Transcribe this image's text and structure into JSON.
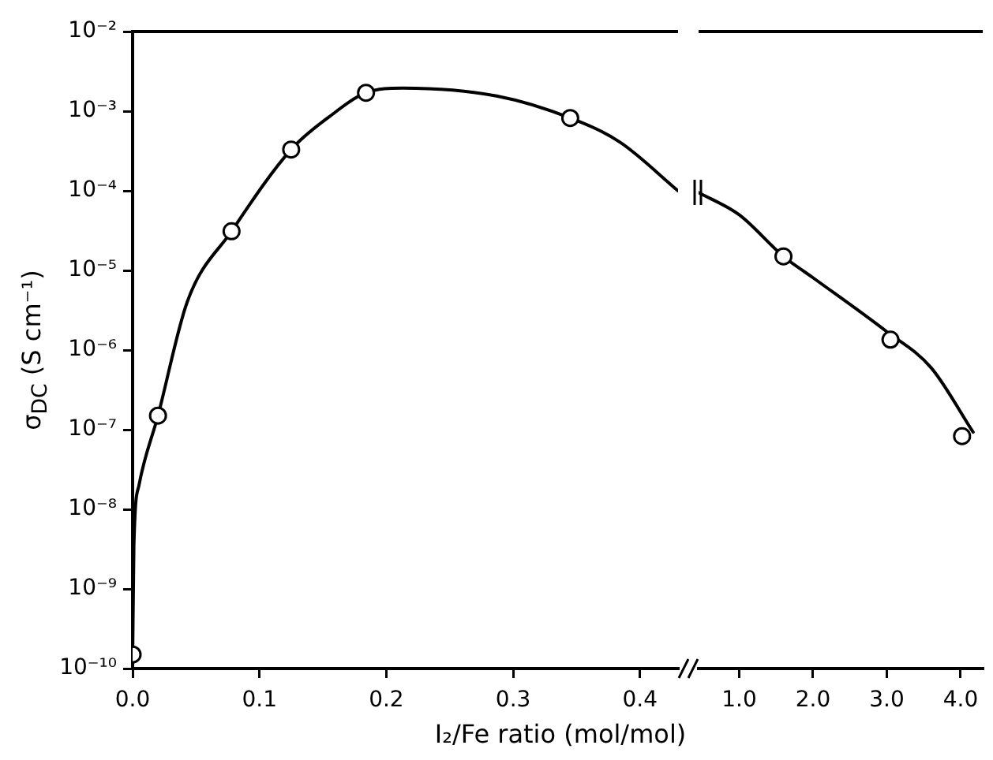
{
  "chart_data": [
    {
      "type": "line",
      "xlabel": "I₂/Fe ratio (mol/mol)",
      "ylabel": "σ$_{DC}$ (S cm⁻¹)",
      "log": "y",
      "grid": false,
      "xlim": [
        0,
        0.43
      ],
      "xticks": [
        {
          "value": 0,
          "label": "0.0"
        },
        {
          "value": 0.1,
          "label": "0.1"
        },
        {
          "value": 0.2,
          "label": "0.2"
        },
        {
          "value": 0.3,
          "label": "0.3"
        },
        {
          "value": 0.4,
          "label": "0.4"
        }
      ],
      "ylim": [
        1e-10,
        0.01
      ],
      "yticks": [
        {
          "value": 1e-10,
          "label": "10⁻¹⁰"
        },
        {
          "value": 1e-09,
          "label": "10⁻⁹"
        },
        {
          "value": 1e-08,
          "label": "10⁻⁸"
        },
        {
          "value": 1e-07,
          "label": "10⁻⁷"
        },
        {
          "value": 1e-06,
          "label": "10⁻⁶"
        },
        {
          "value": 1e-05,
          "label": "10⁻⁵"
        },
        {
          "value": 0.0001,
          "label": "10⁻⁴"
        },
        {
          "value": 0.001,
          "label": "10⁻³"
        },
        {
          "value": 0.01,
          "label": "10⁻²"
        }
      ],
      "series": [
        {
          "type": "line",
          "color": "#000000",
          "marker": "none",
          "x": [
            0,
            0.001,
            0.005,
            0.02,
            0.043,
            0.078,
            0.125,
            0.155,
            0.184,
            0.213,
            0.287,
            0.345,
            0.384,
            0.43
          ],
          "values": [
            1.2e-10,
            3.5e-09,
            2e-08,
            1.5e-07,
            4e-06,
            3.1e-05,
            0.00033,
            0.00085,
            0.0017,
            0.00195,
            0.00155,
            0.00082,
            0.00041,
            0.0001
          ]
        },
        {
          "type": "scatter",
          "color": "#000000",
          "marker": "circle",
          "x": [
            0,
            0.02,
            0.078,
            0.125,
            0.184,
            0.345
          ],
          "values": [
            1.5e-10,
            1.5e-07,
            3.1e-05,
            0.00033,
            0.0017,
            0.00082
          ]
        }
      ]
    },
    {
      "type": "line",
      "log": "y",
      "grid": false,
      "tick_labels": "x",
      "xlim": [
        0.45,
        4.3
      ],
      "xticks": [
        {
          "value": 1,
          "label": "1.0"
        },
        {
          "value": 2,
          "label": "2.0"
        },
        {
          "value": 3,
          "label": "3.0"
        },
        {
          "value": 4,
          "label": "4.0"
        }
      ],
      "ylim": [
        1e-10,
        0.01
      ],
      "series": [
        {
          "type": "line",
          "color": "#000000",
          "marker": "none",
          "x": [
            0.45,
            1,
            1.6,
            2,
            3,
            3.6,
            4.17
          ],
          "values": [
            9.5e-05,
            5e-05,
            1.5e-05,
            8.1e-06,
            1.7e-06,
            6e-07,
            9.3e-08
          ]
        },
        {
          "type": "scatter",
          "color": "#000000",
          "marker": "circle",
          "x": [
            1.6,
            3.05,
            4.02
          ],
          "values": [
            1.5e-05,
            1.35e-06,
            8.3e-08
          ]
        }
      ]
    }
  ]
}
